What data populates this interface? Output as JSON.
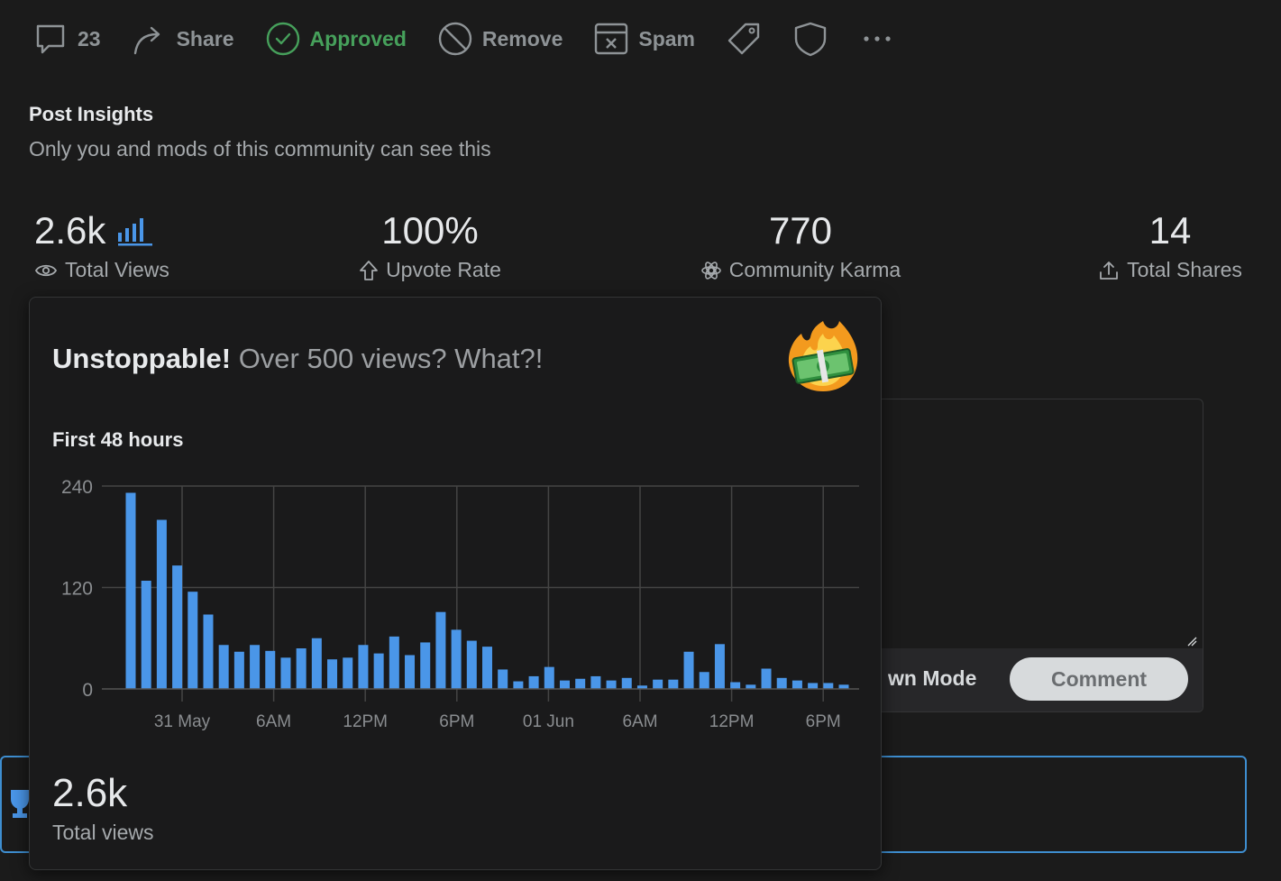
{
  "actions": {
    "comments_count": "23",
    "share_label": "Share",
    "approved_label": "Approved",
    "remove_label": "Remove",
    "spam_label": "Spam"
  },
  "insights": {
    "title": "Post Insights",
    "subtitle": "Only you and mods of this community can see this",
    "total_views": "2.6k",
    "total_views_label": "Total Views",
    "upvote_rate": "100%",
    "upvote_rate_label": "Upvote Rate",
    "community_karma": "770",
    "community_karma_label": "Community Karma",
    "total_shares": "14",
    "total_shares_label": "Total Shares"
  },
  "composer": {
    "markdown_mode_label": "wn Mode",
    "comment_button": "Comment"
  },
  "popup": {
    "headline_strong": "Unstoppable!",
    "headline_rest": "Over 500 views? What?!",
    "chart_title": "First 48 hours",
    "total_value": "2.6k",
    "total_label": "Total views"
  },
  "colors": {
    "bar": "#4a96e8",
    "approved": "#46a05b",
    "accent_border": "#3e8ed0"
  },
  "chart_data": {
    "type": "bar",
    "title": "First 48 hours",
    "xlabel": "",
    "ylabel": "",
    "ylim": [
      0,
      240
    ],
    "yticks": [
      "0",
      "120",
      "240"
    ],
    "xticks": [
      "31 May",
      "6AM",
      "12PM",
      "6PM",
      "01 Jun",
      "6AM",
      "12PM",
      "6PM"
    ],
    "values": [
      232,
      128,
      200,
      146,
      115,
      88,
      52,
      44,
      52,
      45,
      37,
      48,
      60,
      35,
      37,
      52,
      42,
      62,
      40,
      55,
      91,
      70,
      57,
      50,
      23,
      9,
      15,
      26,
      10,
      12,
      15,
      10,
      13,
      4,
      11,
      11,
      44,
      20,
      53,
      8,
      5,
      24,
      13,
      10,
      7,
      7,
      5
    ]
  }
}
